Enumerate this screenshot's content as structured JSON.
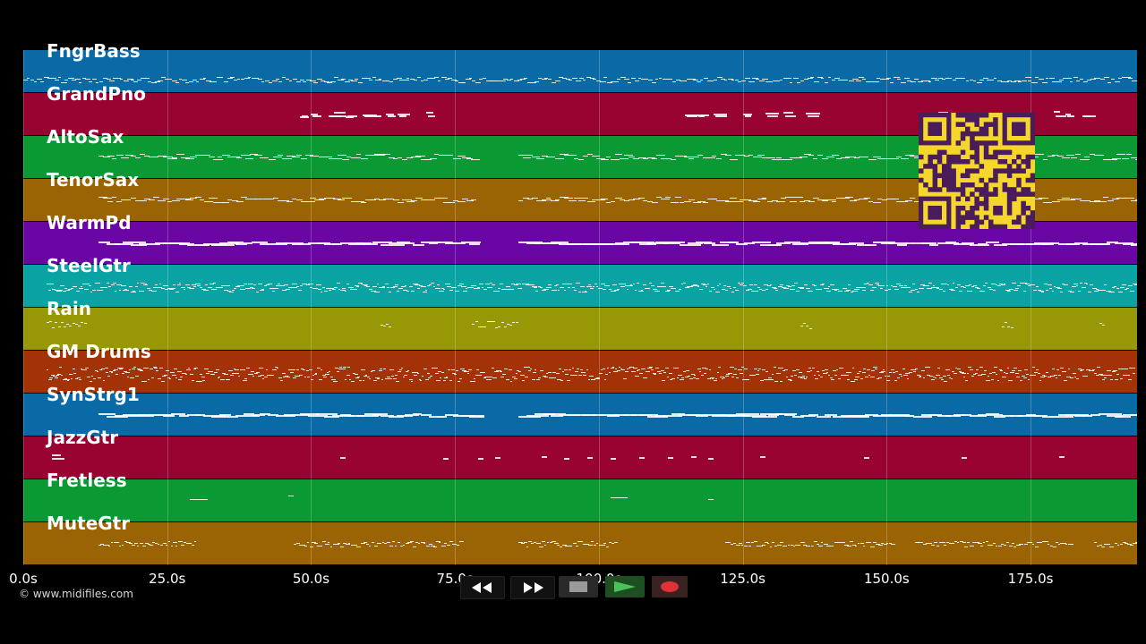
{
  "tracks": [
    {
      "name": "FngrBass",
      "color": "#0a6aa6",
      "pattern": "bass"
    },
    {
      "name": "GrandPno",
      "color": "#980332",
      "pattern": "piano"
    },
    {
      "name": "AltoSax",
      "color": "#0a9933",
      "pattern": "sax"
    },
    {
      "name": "TenorSax",
      "color": "#9a6404",
      "pattern": "sax"
    },
    {
      "name": "WarmPd",
      "color": "#6a06a3",
      "pattern": "pad"
    },
    {
      "name": "SteelGtr",
      "color": "#0aa3a3",
      "pattern": "dense"
    },
    {
      "name": "Rain",
      "color": "#989806",
      "pattern": "rain"
    },
    {
      "name": "GM Drums",
      "color": "#a33206",
      "pattern": "drums"
    },
    {
      "name": "SynStrg1",
      "color": "#0a6aa6",
      "pattern": "pad"
    },
    {
      "name": "JazzGtr",
      "color": "#980332",
      "pattern": "sparse"
    },
    {
      "name": "Fretless",
      "color": "#0a9933",
      "pattern": "fretless"
    },
    {
      "name": "MuteGtr",
      "color": "#9a6404",
      "pattern": "mute"
    }
  ],
  "timeline": {
    "ticks": [
      "0.0s",
      "25.0s",
      "50.0s",
      "75.0s",
      "100.0s",
      "125.0s",
      "150.0s",
      "175.0s"
    ],
    "tick_seconds": [
      0,
      25,
      50,
      75,
      100,
      125,
      150,
      175
    ],
    "duration_seconds": 193.5
  },
  "copyright": "© www.midifiles.com",
  "transport": {
    "buttons": [
      {
        "name": "rewind-button",
        "icon": "rewind-icon"
      },
      {
        "name": "fast-forward-button",
        "icon": "fast-forward-icon"
      },
      {
        "name": "stop-button",
        "icon": "stop-icon"
      },
      {
        "name": "play-button",
        "icon": "play-icon"
      },
      {
        "name": "record-button",
        "icon": "record-icon"
      }
    ]
  },
  "qr_code": {
    "icon": "qr-code-icon",
    "color": "#f5d62a",
    "ink": "#4a1c5c"
  }
}
